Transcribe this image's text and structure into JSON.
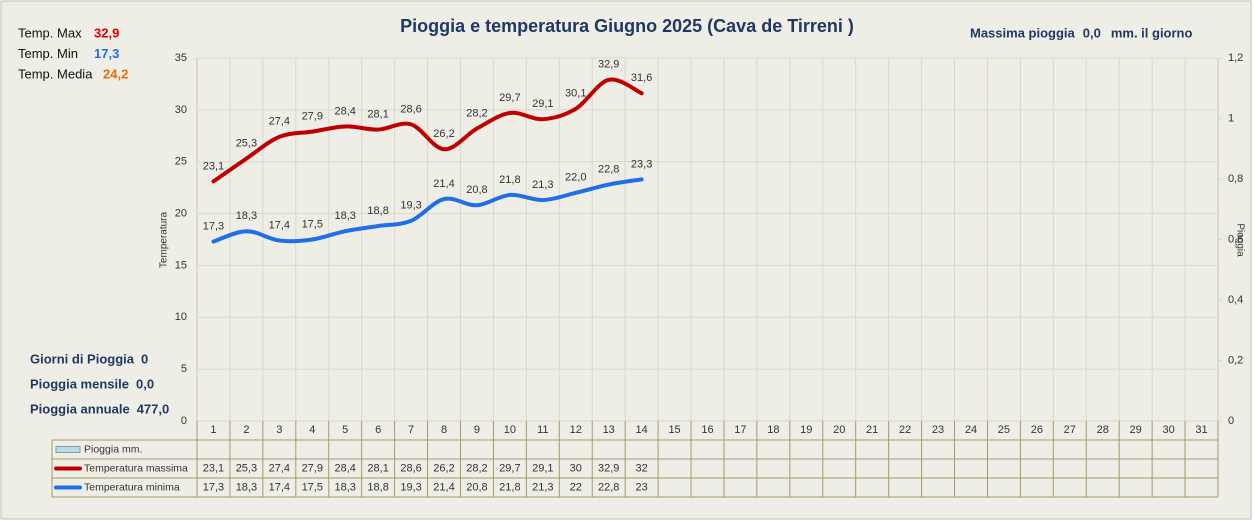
{
  "chart_data": {
    "type": "line",
    "title": "Pioggia e temperatura Giugno 2025 (Cava de Tirreni )",
    "y_label": "Temperatura",
    "y2_label": "Pioggia",
    "categories": [
      "1",
      "2",
      "3",
      "4",
      "5",
      "6",
      "7",
      "8",
      "9",
      "10",
      "11",
      "12",
      "13",
      "14",
      "15",
      "16",
      "17",
      "18",
      "19",
      "20",
      "21",
      "22",
      "23",
      "24",
      "25",
      "26",
      "27",
      "28",
      "29",
      "30",
      "31"
    ],
    "series": [
      {
        "name": "Pioggia mm.",
        "color": "#b7dbe8",
        "axis": "y2",
        "values": [
          null,
          null,
          null,
          null,
          null,
          null,
          null,
          null,
          null,
          null,
          null,
          null,
          null,
          null,
          null,
          null,
          null,
          null,
          null,
          null,
          null,
          null,
          null,
          null,
          null,
          null,
          null,
          null,
          null,
          null,
          null
        ]
      },
      {
        "name": "Temperatura massima",
        "color": "#c00000",
        "values": [
          23.1,
          25.3,
          27.4,
          27.9,
          28.4,
          28.1,
          28.6,
          26.2,
          28.2,
          29.7,
          29.1,
          30.1,
          32.9,
          31.6,
          null,
          null,
          null,
          null,
          null,
          null,
          null,
          null,
          null,
          null,
          null,
          null,
          null,
          null,
          null,
          null,
          null
        ],
        "value_labels": [
          "23,1",
          "25,3",
          "27,4",
          "27,9",
          "28,4",
          "28,1",
          "28,6",
          "26,2",
          "28,2",
          "29,7",
          "29,1",
          "30,1",
          "32,9",
          "31,6",
          null,
          null,
          null,
          null,
          null,
          null,
          null,
          null,
          null,
          null,
          null,
          null,
          null,
          null,
          null,
          null,
          null
        ],
        "table_labels": [
          "23,1",
          "25,3",
          "27,4",
          "27,9",
          "28,4",
          "28,1",
          "28,6",
          "26,2",
          "28,2",
          "29,7",
          "29,1",
          "30",
          "32,9",
          "32"
        ]
      },
      {
        "name": "Temperatura minima",
        "color": "#1f6fe8",
        "values": [
          17.3,
          18.3,
          17.4,
          17.5,
          18.3,
          18.8,
          19.3,
          21.4,
          20.8,
          21.8,
          21.3,
          22.0,
          22.8,
          23.3,
          null,
          null,
          null,
          null,
          null,
          null,
          null,
          null,
          null,
          null,
          null,
          null,
          null,
          null,
          null,
          null,
          null
        ],
        "value_labels": [
          "17,3",
          "18,3",
          "17,4",
          "17,5",
          "18,3",
          "18,8",
          "19,3",
          "21,4",
          "20,8",
          "21,8",
          "21,3",
          "22,0",
          "22,8",
          "23,3",
          null,
          null,
          null,
          null,
          null,
          null,
          null,
          null,
          null,
          null,
          null,
          null,
          null,
          null,
          null,
          null,
          null
        ],
        "table_labels": [
          "17,3",
          "18,3",
          "17,4",
          "17,5",
          "18,3",
          "18,8",
          "19,3",
          "21,4",
          "20,8",
          "21,8",
          "21,3",
          "22",
          "22,8",
          "23"
        ]
      }
    ],
    "ylim": [
      0,
      35
    ],
    "yticks": [
      0,
      5,
      10,
      15,
      20,
      25,
      30,
      35
    ],
    "y2lim": [
      0,
      1.2
    ],
    "y2ticks": [
      0,
      {
        "value": 0.2,
        "label": "0,2"
      },
      {
        "value": 0.4,
        "label": "0,4"
      },
      {
        "value": 0.6,
        "label": "0,6"
      },
      {
        "value": 0.8,
        "label": "0,8"
      },
      1,
      {
        "value": 1.2,
        "label": "1,2"
      }
    ],
    "grid": true,
    "stats": [
      {
        "label": "Temp. Max",
        "value": "32,9",
        "color": "#e00000"
      },
      {
        "label": "Temp. Min",
        "value": "17,3",
        "color": "#1f6fe8"
      },
      {
        "label": "Temp. Media",
        "value": "24,2",
        "color": "#e46c0a"
      }
    ],
    "rain_stats": [
      {
        "label": "Giorni di Pioggia",
        "value": "0"
      },
      {
        "label": "Pioggia mensile",
        "value": "0,0"
      },
      {
        "label": "Pioggia annuale",
        "value": "477,0"
      }
    ],
    "max_rain": {
      "label": "Massima pioggia",
      "value": "0,0",
      "unit": "mm. il giorno"
    }
  }
}
